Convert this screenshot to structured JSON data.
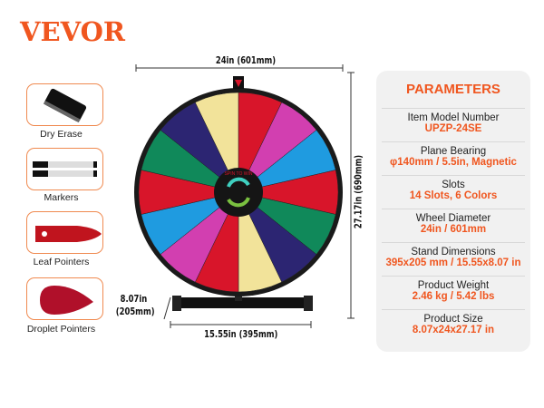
{
  "brand": {
    "logo": "VEVOR",
    "color": "#f0561f"
  },
  "accessories": [
    {
      "label": "Dry Erase",
      "icon": "eraser-icon"
    },
    {
      "label": "Markers",
      "icon": "markers-icon"
    },
    {
      "label": "Leaf Pointers",
      "icon": "leaf-pointer-icon"
    },
    {
      "label": "Droplet Pointers",
      "icon": "droplet-pointer-icon"
    }
  ],
  "dimensions": {
    "width": "24in (601mm)",
    "height": "27.17in (690mm)",
    "stand_depth_in": "8.07in",
    "stand_depth_mm": "(205mm)",
    "stand_width": "15.55in (395mm)"
  },
  "wheel": {
    "hub_text": "SPIN TO WIN",
    "segments": [
      "#d8152a",
      "#d23fb0",
      "#1f9be0",
      "#d8152a",
      "#10895a",
      "#2c2572",
      "#f2e39a",
      "#d8152a",
      "#d23fb0",
      "#1f9be0",
      "#d8152a",
      "#10895a",
      "#2c2572",
      "#f2e39a"
    ]
  },
  "parameters": {
    "title": "PARAMETERS",
    "rows": [
      {
        "label": "Item Model Number",
        "value": "UPZP-24SE"
      },
      {
        "label": "Plane Bearing",
        "value": "φ140mm / 5.5in, Magnetic"
      },
      {
        "label": "Slots",
        "value": "14 Slots, 6 Colors"
      },
      {
        "label": "Wheel Diameter",
        "value": "24in / 601mm"
      },
      {
        "label": "Stand Dimensions",
        "value": "395x205 mm / 15.55x8.07 in"
      },
      {
        "label": "Product Weight",
        "value": "2.46 kg / 5.42 lbs"
      },
      {
        "label": "Product Size",
        "value": "8.07x24x27.17 in"
      }
    ]
  }
}
